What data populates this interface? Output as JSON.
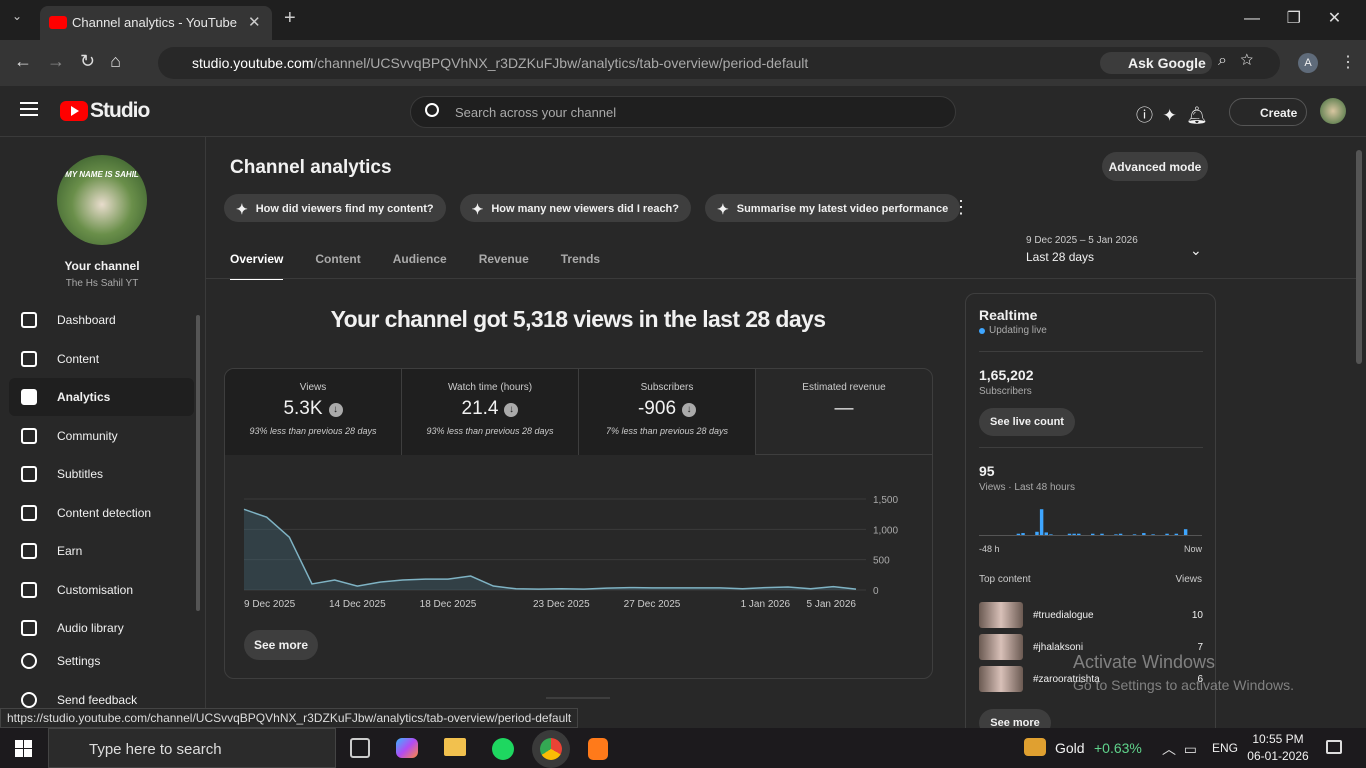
{
  "browser": {
    "tab_title": "Channel analytics - YouTube Studio",
    "url_host": "studio.youtube.com",
    "url_path": "/channel/UCSvvqBPQVhNX_r3DZKuFJbw/analytics/tab-overview/period-default",
    "ask_google": "Ask Google",
    "profile_initial": "A",
    "status_url": "https://studio.youtube.com/channel/UCSvvqBPQVhNX_r3DZKuFJbw/analytics/tab-overview/period-default"
  },
  "header": {
    "logo": "Studio",
    "search_placeholder": "Search across your channel",
    "create": "Create"
  },
  "sidebar": {
    "avatar_caption": "MY NAME IS SAHIL",
    "channel_label": "Your channel",
    "channel_name": "The Hs Sahil YT",
    "items": [
      {
        "label": "Dashboard"
      },
      {
        "label": "Content"
      },
      {
        "label": "Analytics",
        "active": true
      },
      {
        "label": "Community"
      },
      {
        "label": "Subtitles"
      },
      {
        "label": "Content detection"
      },
      {
        "label": "Earn"
      },
      {
        "label": "Customisation"
      },
      {
        "label": "Audio library"
      }
    ],
    "footer": [
      "Settings",
      "Send feedback"
    ]
  },
  "page": {
    "title": "Channel analytics",
    "advanced_mode": "Advanced mode",
    "suggestions": [
      "How did viewers find my content?",
      "How many new viewers did I reach?",
      "Summarise my latest video performance"
    ],
    "tabs": [
      {
        "label": "Overview",
        "active": true
      },
      {
        "label": "Content"
      },
      {
        "label": "Audience"
      },
      {
        "label": "Revenue"
      },
      {
        "label": "Trends"
      }
    ],
    "period_range": "9 Dec 2025 – 5 Jan 2026",
    "period": "Last 28 days",
    "headline": "Your channel got 5,318 views in the last 28 days",
    "see_more": "See more"
  },
  "metrics": [
    {
      "label": "Views",
      "value": "5.3K",
      "change": "93% less than previous 28 days"
    },
    {
      "label": "Watch time (hours)",
      "value": "21.4",
      "change": "93% less than previous 28 days"
    },
    {
      "label": "Subscribers",
      "value": "-906",
      "change": "7% less than previous 28 days"
    },
    {
      "label": "Estimated revenue",
      "value": "—"
    }
  ],
  "chart_data": [
    {
      "type": "line",
      "color": "#7fb3c4",
      "grid": true,
      "categories": [
        "9 Dec 2025",
        null,
        null,
        null,
        null,
        "14 Dec 2025",
        null,
        null,
        null,
        "18 Dec 2025",
        null,
        null,
        null,
        null,
        "23 Dec 2025",
        null,
        null,
        null,
        "27 Dec 2025",
        null,
        null,
        null,
        null,
        "1 Jan 2026",
        null,
        null,
        null,
        "5 Jan 2026"
      ],
      "values": [
        1330,
        1200,
        870,
        100,
        165,
        65,
        130,
        165,
        180,
        180,
        230,
        65,
        20,
        15,
        20,
        15,
        30,
        40,
        35,
        35,
        35,
        35,
        20,
        40,
        50,
        20,
        55,
        15
      ],
      "ylim": [
        0,
        1500
      ],
      "yticks": [
        0,
        500,
        {
          "value": 1000,
          "label": "1,000"
        },
        {
          "value": 1500,
          "label": "1,500"
        }
      ]
    },
    {
      "type": "bar",
      "color": "#3ea6ff",
      "categories": [
        "-48 h",
        null,
        null,
        null,
        null,
        null,
        null,
        null,
        null,
        null,
        null,
        null,
        null,
        null,
        null,
        null,
        null,
        null,
        null,
        null,
        null,
        null,
        null,
        null,
        null,
        null,
        null,
        null,
        null,
        null,
        null,
        null,
        null,
        null,
        null,
        null,
        null,
        null,
        null,
        null,
        null,
        null,
        null,
        null,
        null,
        null,
        null,
        "Now"
      ],
      "values": [
        0,
        0,
        0,
        0,
        0,
        0,
        0,
        0,
        2,
        3,
        0,
        0,
        5,
        40,
        4,
        1,
        0,
        0,
        0,
        2,
        2,
        2,
        0,
        0,
        2,
        0,
        2,
        0,
        0,
        1,
        2,
        0,
        0,
        1,
        0,
        3,
        0,
        1,
        0,
        0,
        2,
        0,
        2,
        0,
        9,
        0,
        0,
        0
      ],
      "ylim": [
        0,
        45
      ]
    }
  ],
  "realtime": {
    "title": "Realtime",
    "status": "Updating live",
    "subscribers": "1,65,202",
    "subscribers_label": "Subscribers",
    "see_live_count": "See live count",
    "views": "95",
    "views_label": "Views · Last 48 hours",
    "top_content": "Top content",
    "top_views": "Views",
    "items": [
      {
        "title": "#truedialogue",
        "views": 10
      },
      {
        "title": "#jhalaksoni",
        "views": 7
      },
      {
        "title": "#zarooratrishta",
        "views": 6
      }
    ],
    "see_more": "See more"
  },
  "watermark": {
    "title": "Activate Windows",
    "subtitle": "Go to Settings to activate Windows."
  },
  "taskbar": {
    "search": "Type here to search",
    "ticker": "Gold",
    "ticker_change": "+0.63%",
    "language": "ENG",
    "time": "10:55 PM",
    "date": "06-01-2026"
  }
}
